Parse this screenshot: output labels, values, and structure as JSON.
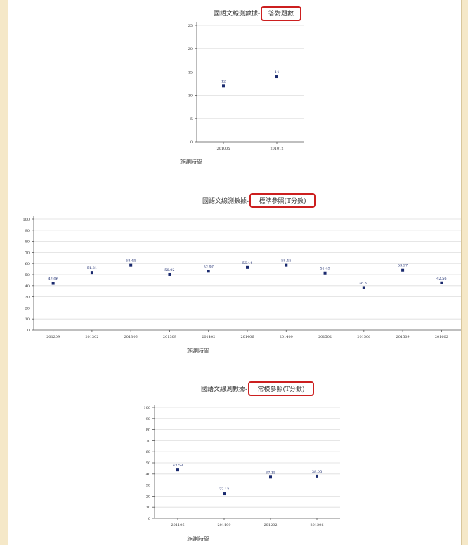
{
  "chart_data": [
    {
      "type": "scatter",
      "title": "國語文線測數據-",
      "title_highlight": "答對題數",
      "categories": [
        "201005",
        "201012"
      ],
      "values": [
        12,
        14
      ],
      "labels": [
        "12",
        "14"
      ],
      "ylim": [
        0,
        25
      ],
      "yticks": [
        0,
        5,
        10,
        15,
        20,
        25
      ],
      "xlabel": "施測時間",
      "grid": true,
      "point_color": "#1a2a6e"
    },
    {
      "type": "scatter",
      "title": "國語文線測數據-",
      "title_highlight": "標準參照(T分數)",
      "categories": [
        "201209",
        "201302",
        "201306",
        "201309",
        "201402",
        "201406",
        "201409",
        "201502",
        "201506",
        "201509",
        "201602"
      ],
      "values": [
        42.06,
        51.81,
        58.44,
        50.02,
        52.97,
        56.44,
        58.45,
        51.43,
        38.31,
        53.97,
        42.56
      ],
      "labels": [
        "42.06",
        "51.81",
        "58.44",
        "50.02",
        "52.97",
        "56.44",
        "58.45",
        "51.43",
        "38.31",
        "53.97",
        "42.56"
      ],
      "ylim": [
        0,
        100
      ],
      "yticks": [
        0,
        10,
        20,
        30,
        40,
        50,
        60,
        70,
        80,
        90,
        100
      ],
      "xlabel": "施測時間",
      "grid": true,
      "point_color": "#1a2a6e"
    },
    {
      "type": "scatter",
      "title": "國語文線測數據-",
      "title_highlight": "常模參照(T分數)",
      "categories": [
        "201106",
        "201109",
        "201202",
        "201206"
      ],
      "values": [
        43.58,
        22.12,
        37.15,
        38.05
      ],
      "labels": [
        "43.58",
        "22.12",
        "37.15",
        "38.05"
      ],
      "ylim": [
        0,
        100
      ],
      "yticks": [
        0,
        10,
        20,
        30,
        40,
        50,
        60,
        70,
        80,
        90,
        100
      ],
      "xlabel": "施測時間",
      "grid": true,
      "point_color": "#1a2a6e"
    }
  ]
}
